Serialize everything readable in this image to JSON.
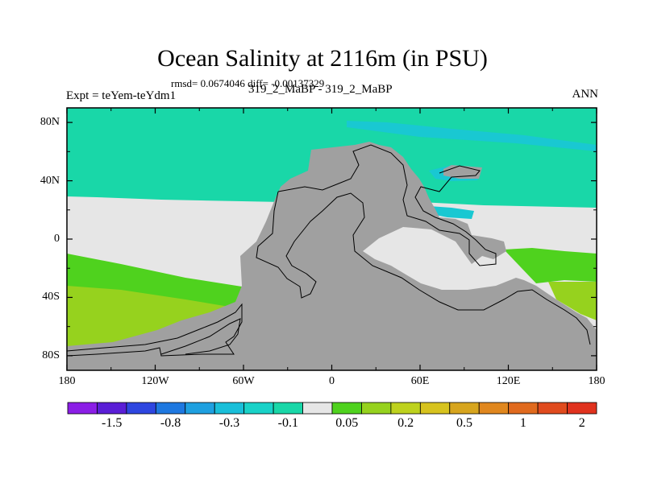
{
  "title": "Ocean Salinity at 2116m (in PSU)",
  "stats_line": "rmsd= 0.0674046 diff= -0.00137329",
  "experiment_label": "Expt = teYem-teYdm1",
  "case_label": "319_2_MaBP - 319_2_MaBP",
  "season_label": "ANN",
  "y_axis": {
    "labels": [
      "80N",
      "40N",
      "0",
      "40S",
      "80S"
    ],
    "values": [
      80,
      40,
      0,
      -40,
      -80
    ],
    "range": [
      -90,
      90
    ]
  },
  "x_axis": {
    "labels": [
      "180",
      "120W",
      "60W",
      "0",
      "60E",
      "120E",
      "180"
    ],
    "values": [
      -180,
      -120,
      -60,
      0,
      60,
      120,
      180
    ],
    "range": [
      -180,
      180
    ]
  },
  "colorbar": {
    "colors": [
      "#8b1ee6",
      "#5a1ed6",
      "#2e46e0",
      "#1e78e0",
      "#1ea0e0",
      "#19bfd9",
      "#19d2c8",
      "#19d7a8",
      "#e6e6e6",
      "#4fd21e",
      "#96d21e",
      "#bed21e",
      "#d7c31e",
      "#d7a51e",
      "#e0871e",
      "#e06a1e",
      "#e04b1e",
      "#e0321e"
    ],
    "labels": [
      "-1.5",
      "-0.8",
      "-0.3",
      "-0.1",
      "0.05",
      "0.2",
      "0.5",
      "1",
      "2"
    ],
    "label_boundary_index": [
      2,
      4,
      6,
      8,
      10,
      12,
      14,
      16,
      18
    ]
  },
  "colors": {
    "land": "#a0a0a0",
    "neutral": "#e6e6e6",
    "teal": "#19d7a8",
    "cyan": "#19c8d2",
    "lightgreen": "#4fd21e",
    "green": "#96d21e",
    "ocean_default": "#e6e6e6"
  }
}
